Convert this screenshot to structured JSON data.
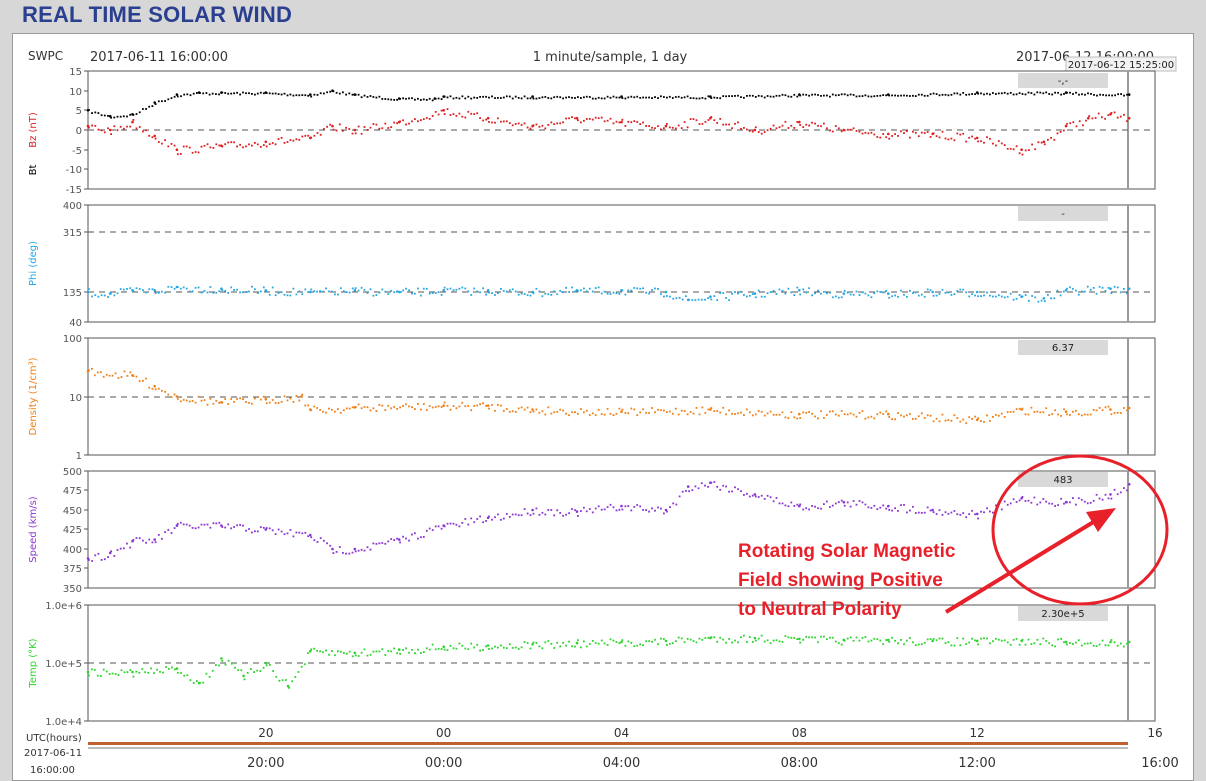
{
  "page": {
    "title": "REAL TIME SOLAR WIND"
  },
  "plot_header": {
    "source": "SWPC",
    "start_time": "2017-06-11 16:00:00",
    "sampling": "1 minute/sample, 1 day",
    "end_time": "2017-06-12 16:00:00",
    "cursor_time": "2017-06-12 15:25:00"
  },
  "annotation": {
    "lines": [
      "Rotating Solar Magnetic",
      "Field showing Positive",
      "to Neutral Polarity"
    ],
    "color": "#e8202a"
  },
  "x_axis": {
    "utc_label": "UTC(hours)",
    "hour_ticks": [
      "20",
      "00",
      "04",
      "08",
      "12",
      "16"
    ],
    "time_label_date": "2017-06-11",
    "time_label_time": "16:00:00",
    "bottom_ticks": [
      "20:00",
      "00:00",
      "04:00",
      "08:00",
      "12:00",
      "16:00"
    ]
  },
  "chart_data": [
    {
      "type": "scatter",
      "ylabel": "Bz (nT)",
      "ylabel2": "Bt",
      "yticks": [
        "15",
        "10",
        "5",
        "0",
        "-5",
        "-10",
        "-15"
      ],
      "ylim": [
        -15,
        15
      ],
      "value_box": "-,-",
      "series": [
        {
          "color": "#000000",
          "x": [
            16.0,
            16.5,
            17.0,
            17.5,
            18.0,
            18.5,
            19.0,
            20.0,
            21.0,
            21.5,
            22.0,
            23.0,
            23.8,
            0.0,
            2.0,
            4.0,
            6.0,
            8.0,
            10.0,
            12.0,
            14.0,
            15.42
          ],
          "y": [
            5,
            3.5,
            4,
            7,
            9,
            9.5,
            9.5,
            9.5,
            9,
            10,
            9,
            8,
            8,
            8.5,
            8.5,
            8.5,
            8.5,
            9,
            9,
            9.5,
            9.5,
            9
          ]
        },
        {
          "color": "#dd1e1e",
          "x": [
            16.0,
            16.5,
            17.0,
            17.5,
            18.0,
            19.0,
            20.0,
            21.0,
            21.5,
            22.0,
            23.0,
            0.0,
            1.0,
            2.0,
            3.0,
            4.0,
            5.0,
            6.0,
            7.0,
            8.0,
            9.0,
            10.0,
            11.0,
            12.0,
            13.0,
            13.5,
            14.0,
            14.5,
            15.0,
            15.42
          ],
          "y": [
            1,
            0,
            2,
            -1.5,
            -5,
            -4,
            -3,
            -2,
            1,
            0,
            2,
            5,
            3,
            1,
            3,
            2,
            1,
            3,
            0,
            2,
            0,
            -1,
            -1,
            -2,
            -5,
            -3,
            1,
            3,
            4,
            3
          ]
        }
      ]
    },
    {
      "type": "scatter",
      "ylabel": "Phi (deg)",
      "yticks": [
        "400",
        "315",
        "135",
        "40"
      ],
      "value_box": "-",
      "series": [
        {
          "color": "#27a7e1",
          "x": [
            16.0,
            16.5,
            17.0,
            17.5,
            18.0,
            19.0,
            20.0,
            21.0,
            22.0,
            23.0,
            0.0,
            1.0,
            2.0,
            3.0,
            4.0,
            5.0,
            5.5,
            6.0,
            7.0,
            8.0,
            9.0,
            10.0,
            11.0,
            12.0,
            13.0,
            13.5,
            14.0,
            15.0,
            15.42
          ],
          "y": [
            135,
            130,
            140,
            140,
            150,
            145,
            140,
            135,
            140,
            135,
            140,
            140,
            135,
            140,
            140,
            135,
            110,
            120,
            130,
            140,
            130,
            130,
            135,
            135,
            120,
            115,
            140,
            145,
            145
          ]
        }
      ]
    },
    {
      "type": "scatter",
      "ylabel": "Density (1/cm³)",
      "yticks": [
        "100",
        "10",
        "1"
      ],
      "value_box": "6.37",
      "series": [
        {
          "color": "#ef7f16",
          "x": [
            16.0,
            17.0,
            17.5,
            18.0,
            19.0,
            20.0,
            20.8,
            21.0,
            22.0,
            0.0,
            1.0,
            2.0,
            4.0,
            6.0,
            8.0,
            10.0,
            12.0,
            13.0,
            14.0,
            15.0,
            15.42
          ],
          "y": [
            27,
            23,
            15,
            10,
            8,
            9,
            10,
            6,
            6.5,
            7,
            7,
            6,
            5.5,
            6,
            5,
            5,
            4,
            6,
            5.5,
            6,
            6.37
          ]
        }
      ]
    },
    {
      "type": "scatter",
      "ylabel": "Speed (km/s)",
      "yticks": [
        "500",
        "475",
        "450",
        "425",
        "400",
        "375",
        "350"
      ],
      "ylim": [
        350,
        500
      ],
      "value_box": "483",
      "series": [
        {
          "color": "#8a35d2",
          "x": [
            16.0,
            16.5,
            17.0,
            17.5,
            18.0,
            19.0,
            20.0,
            21.0,
            21.5,
            22.0,
            23.0,
            0.0,
            1.0,
            2.0,
            3.0,
            4.0,
            5.0,
            5.5,
            6.0,
            7.0,
            8.0,
            9.0,
            10.0,
            11.0,
            12.0,
            13.0,
            14.0,
            15.0,
            15.42
          ],
          "y": [
            388,
            395,
            410,
            412,
            430,
            430,
            425,
            418,
            400,
            400,
            412,
            430,
            440,
            450,
            448,
            455,
            450,
            480,
            485,
            470,
            455,
            460,
            455,
            450,
            445,
            465,
            460,
            470,
            483
          ]
        }
      ]
    },
    {
      "type": "scatter",
      "ylabel": "Temp (°K)",
      "yticks": [
        "1.0e+6",
        "1.0e+5",
        "1.0e+4"
      ],
      "value_box": "2.30e+5",
      "series": [
        {
          "color": "#2bd42b",
          "x": [
            16.0,
            17.0,
            18.0,
            18.5,
            19.0,
            19.5,
            20.0,
            20.5,
            21.0,
            22.0,
            23.0,
            0.0,
            1.0,
            2.0,
            3.0,
            4.0,
            5.0,
            6.0,
            7.0,
            8.0,
            9.0,
            10.0,
            11.0,
            12.0,
            13.0,
            14.0,
            15.0,
            15.42
          ],
          "y": [
            70000,
            70000,
            80000,
            45000,
            120000,
            60000,
            100000,
            40000,
            160000,
            150000,
            170000,
            190000,
            200000,
            210000,
            220000,
            230000,
            240000,
            270000,
            270000,
            260000,
            250000,
            250000,
            240000,
            240000,
            240000,
            230000,
            230000,
            230000
          ]
        }
      ]
    }
  ]
}
